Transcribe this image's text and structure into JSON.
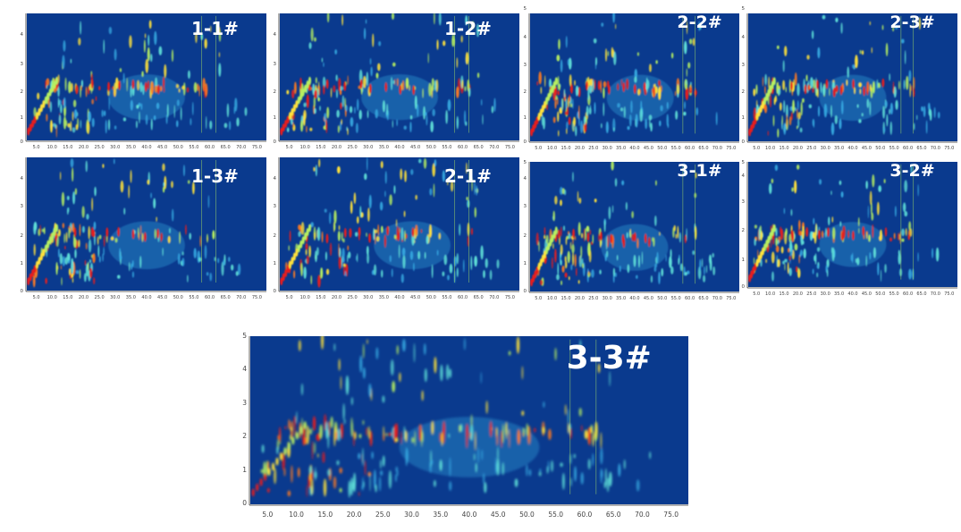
{
  "figure": {
    "colors": {
      "background": "#0a3a8e",
      "axis": "#333333",
      "scale": [
        "#0a3a8e",
        "#1c62c4",
        "#35a8e0",
        "#5fe0d8",
        "#b7f060",
        "#ffe23a",
        "#ff7a20",
        "#e81c1c"
      ]
    }
  },
  "chart_data": [
    {
      "type": "heatmap",
      "label": "1-1#",
      "xticks": [
        "5.0",
        "10.0",
        "15.0",
        "20.0",
        "25.0",
        "30.0",
        "35.0",
        "40.0",
        "45.0",
        "50.0",
        "55.0",
        "60.0",
        "65.0",
        "70.0",
        "75.0"
      ],
      "yticks": [
        "0",
        "1",
        "2",
        "3",
        "4"
      ],
      "xlim": [
        2,
        78
      ],
      "ylim": [
        0,
        5
      ]
    },
    {
      "type": "heatmap",
      "label": "1-2#",
      "xticks": [
        "5.0",
        "10.0",
        "15.0",
        "20.0",
        "25.0",
        "30.0",
        "35.0",
        "40.0",
        "45.0",
        "50.0",
        "55.0",
        "60.0",
        "65.0",
        "70.0",
        "75.0"
      ],
      "yticks": [
        "0",
        "1",
        "2",
        "3",
        "4"
      ],
      "xlim": [
        2,
        78
      ],
      "ylim": [
        0,
        5
      ]
    },
    {
      "type": "heatmap",
      "label": "2-2#",
      "xticks": [
        "5.0",
        "10.0",
        "15.0",
        "20.0",
        "25.0",
        "30.0",
        "35.0",
        "40.0",
        "45.0",
        "50.0",
        "55.0",
        "60.0",
        "65.0",
        "70.0",
        "75.0"
      ],
      "yticks": [
        "0",
        "1",
        "2",
        "3",
        "4",
        "5"
      ],
      "xlim": [
        2,
        78
      ],
      "ylim": [
        0,
        5
      ]
    },
    {
      "type": "heatmap",
      "label": "2-3#",
      "xticks": [
        "5.0",
        "10.0",
        "15.0",
        "20.0",
        "25.0",
        "30.0",
        "35.0",
        "40.0",
        "45.0",
        "50.0",
        "55.0",
        "60.0",
        "65.0",
        "70.0",
        "75.0"
      ],
      "yticks": [
        "0",
        "1",
        "2",
        "3",
        "4",
        "5"
      ],
      "xlim": [
        2,
        78
      ],
      "ylim": [
        0,
        5
      ]
    },
    {
      "type": "heatmap",
      "label": "1-3#",
      "xticks": [
        "5.0",
        "10.0",
        "15.0",
        "20.0",
        "25.0",
        "30.0",
        "35.0",
        "40.0",
        "45.0",
        "50.0",
        "55.0",
        "60.0",
        "65.0",
        "70.0",
        "75.0"
      ],
      "yticks": [
        "0",
        "1",
        "2",
        "3",
        "4"
      ],
      "xlim": [
        2,
        78
      ],
      "ylim": [
        0,
        5
      ]
    },
    {
      "type": "heatmap",
      "label": "2-1#",
      "xticks": [
        "5.0",
        "10.0",
        "15.0",
        "20.0",
        "25.0",
        "30.0",
        "35.0",
        "40.0",
        "45.0",
        "50.0",
        "55.0",
        "60.0",
        "65.0",
        "70.0",
        "75.0"
      ],
      "yticks": [
        "0",
        "1",
        "2",
        "3",
        "4"
      ],
      "xlim": [
        2,
        78
      ],
      "ylim": [
        0,
        5
      ]
    },
    {
      "type": "heatmap",
      "label": "3-1#",
      "xticks": [
        "5.0",
        "10.0",
        "15.0",
        "20.0",
        "25.0",
        "30.0",
        "35.0",
        "40.0",
        "45.0",
        "50.0",
        "55.0",
        "60.0",
        "65.0",
        "70.0",
        "75.0"
      ],
      "yticks": [
        "0",
        "1",
        "2",
        "3",
        "4",
        "5"
      ],
      "xlim": [
        2,
        78
      ],
      "ylim": [
        0,
        5
      ]
    },
    {
      "type": "heatmap",
      "label": "3-2#",
      "xticks": [
        "5.0",
        "10.0",
        "15.0",
        "20.0",
        "25.0",
        "30.0",
        "35.0",
        "40.0",
        "45.0",
        "50.0",
        "55.0",
        "60.0",
        "65.0",
        "70.0",
        "75.0"
      ],
      "yticks": [
        "0",
        "1",
        "2",
        "3",
        "4",
        "5"
      ],
      "xlim": [
        2,
        78
      ],
      "ylim": [
        0,
        5
      ]
    },
    {
      "type": "heatmap",
      "label": "3-3#",
      "xticks": [
        "5.0",
        "10.0",
        "15.0",
        "20.0",
        "25.0",
        "30.0",
        "35.0",
        "40.0",
        "45.0",
        "50.0",
        "55.0",
        "60.0",
        "65.0",
        "70.0",
        "75.0"
      ],
      "yticks": [
        "0",
        "1",
        "2",
        "3",
        "4",
        "5"
      ],
      "xlim": [
        2,
        78
      ],
      "ylim": [
        0,
        5
      ]
    }
  ]
}
